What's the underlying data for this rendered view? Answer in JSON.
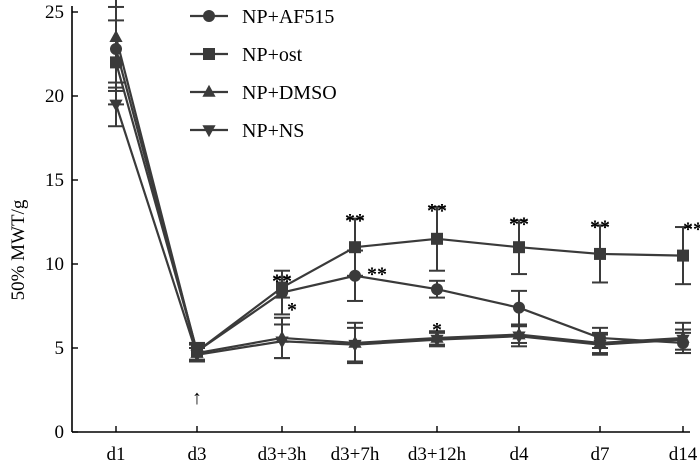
{
  "chart_data": {
    "type": "line",
    "title": "",
    "xlabel": "",
    "ylabel": "50% MWT/g",
    "ylim": [
      0,
      25
    ],
    "yticks": [
      0,
      5,
      10,
      15,
      20,
      25
    ],
    "categories": [
      "d1",
      "d3",
      "d3+3h",
      "d3+7h",
      "d3+12h",
      "d4",
      "d7",
      "d14"
    ],
    "legend_position": "top-center",
    "grid": false,
    "series": [
      {
        "name": "NP+AF515",
        "marker": "circle",
        "color": "#3a3a3a",
        "values": [
          22.8,
          4.8,
          8.3,
          9.3,
          8.5,
          7.4,
          5.6,
          5.3
        ],
        "errors": [
          2.5,
          0.5,
          1.3,
          1.5,
          0.5,
          1.0,
          0.6,
          0.6
        ]
      },
      {
        "name": "NP+ost",
        "marker": "square",
        "color": "#3a3a3a",
        "values": [
          22.0,
          4.8,
          8.6,
          11.0,
          11.5,
          11.0,
          10.6,
          10.5
        ],
        "errors": [
          2.5,
          0.5,
          0.6,
          1.7,
          1.9,
          1.6,
          1.7,
          1.7
        ]
      },
      {
        "name": "NP+DMSO",
        "marker": "triangle-up",
        "color": "#3a3a3a",
        "values": [
          23.5,
          4.7,
          5.6,
          5.3,
          5.6,
          5.8,
          5.3,
          5.6
        ],
        "errors": [
          3.0,
          0.5,
          1.2,
          1.2,
          0.4,
          0.5,
          0.6,
          0.9
        ]
      },
      {
        "name": "NP+NS",
        "marker": "triangle-down",
        "color": "#3a3a3a",
        "values": [
          19.5,
          4.6,
          5.4,
          5.2,
          5.5,
          5.7,
          5.2,
          5.5
        ],
        "errors": [
          1.3,
          0.4,
          1.0,
          1.0,
          0.4,
          0.6,
          0.6,
          0.6
        ]
      }
    ],
    "annotations": [
      {
        "category": "d3+3h",
        "y": 9.2,
        "text": "**",
        "dx": 0
      },
      {
        "category": "d3+3h",
        "y": 7.5,
        "text": "*",
        "dx": 10
      },
      {
        "category": "d3+7h",
        "y": 12.8,
        "text": "**",
        "dx": 0
      },
      {
        "category": "d3+7h",
        "y": 9.6,
        "text": "**",
        "dx": 22
      },
      {
        "category": "d3+12h",
        "y": 13.4,
        "text": "**",
        "dx": 0
      },
      {
        "category": "d3+12h",
        "y": 6.3,
        "text": "*",
        "dx": 0
      },
      {
        "category": "d4",
        "y": 12.6,
        "text": "**",
        "dx": 0
      },
      {
        "category": "d7",
        "y": 12.4,
        "text": "**",
        "dx": 0
      },
      {
        "category": "d14",
        "y": 12.3,
        "text": "**",
        "dx": 10
      }
    ],
    "arrow": {
      "category": "d3",
      "glyph": "↑"
    }
  }
}
